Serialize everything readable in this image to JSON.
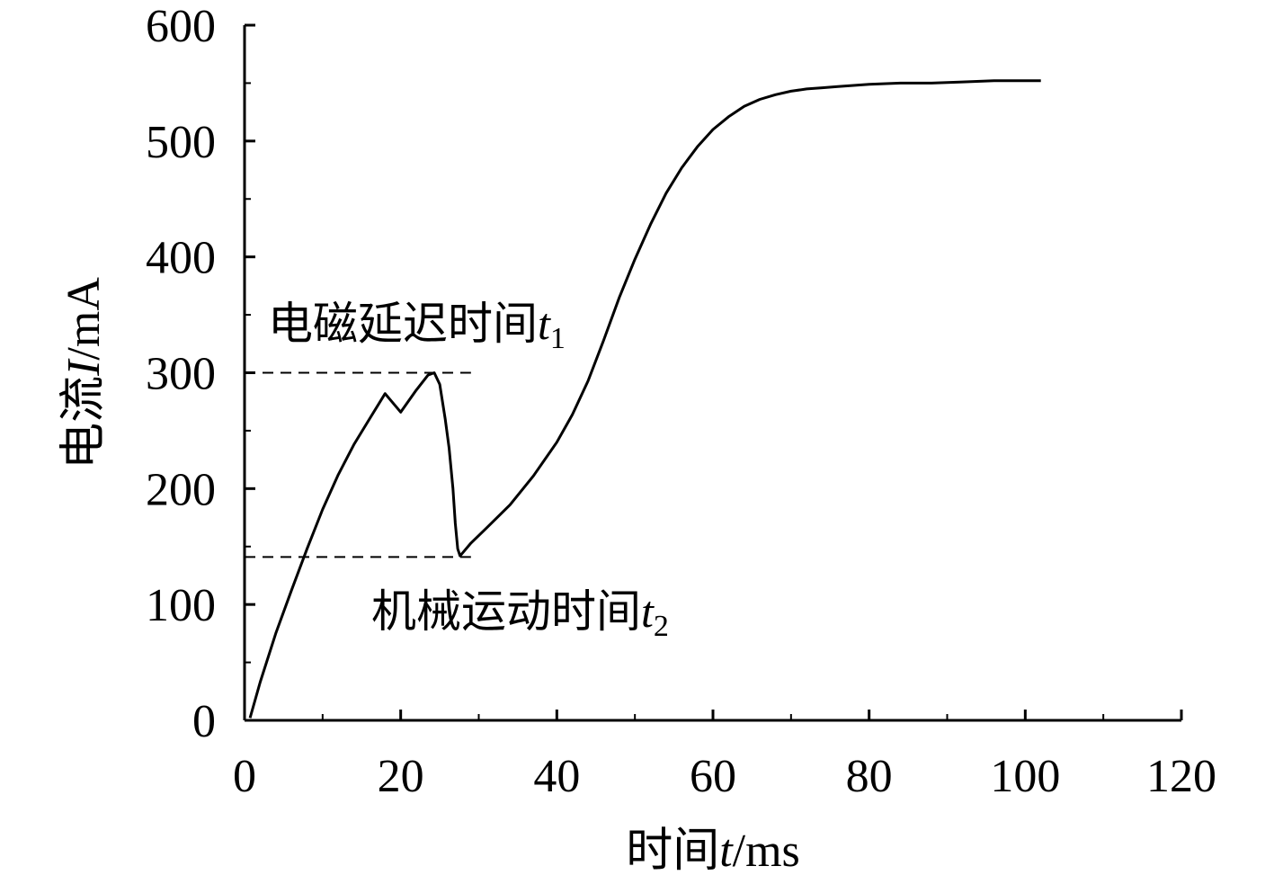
{
  "chart_data": {
    "type": "line",
    "title": "",
    "xlabel": {
      "prefix": "时间",
      "var": "t",
      "unit": "/ms"
    },
    "ylabel": {
      "prefix": "电流",
      "var": "I",
      "unit": "/mA"
    },
    "xlim": [
      0,
      120
    ],
    "ylim": [
      0,
      600
    ],
    "xticks": [
      0,
      20,
      40,
      60,
      80,
      100,
      120
    ],
    "yticks": [
      0,
      100,
      200,
      300,
      400,
      500,
      600
    ],
    "xtick_labels": [
      "0",
      "20",
      "40",
      "60",
      "80",
      "100",
      "120"
    ],
    "ytick_labels": [
      "0",
      "100",
      "200",
      "300",
      "400",
      "500",
      "600"
    ],
    "grid": false,
    "series": [
      {
        "x": [
          0.7,
          2,
          4,
          6,
          8,
          10,
          12,
          14,
          16,
          18,
          20,
          22,
          23.5,
          24.3,
          25,
          25.7,
          26.2,
          26.7,
          27,
          27.3,
          27.6,
          28,
          29,
          31,
          34,
          37,
          40,
          42,
          44,
          46,
          48,
          50,
          52,
          54,
          56,
          58,
          60,
          62,
          64,
          66,
          68,
          70,
          72,
          74,
          76,
          78,
          80,
          84,
          88,
          92,
          96,
          100,
          102
        ],
        "y": [
          2,
          33,
          75,
          112,
          148,
          182,
          212,
          238,
          260,
          282,
          266,
          285,
          298,
          300,
          290,
          260,
          235,
          200,
          170,
          148,
          142,
          145,
          153,
          166,
          186,
          211,
          240,
          264,
          293,
          328,
          365,
          398,
          428,
          455,
          477,
          495,
          510,
          521,
          530,
          536,
          540,
          543,
          545,
          546,
          547,
          548,
          549,
          550,
          550,
          551,
          552,
          552,
          552
        ]
      }
    ],
    "reference_lines": [
      {
        "y": 300,
        "x_from": 0,
        "x_to": 29
      },
      {
        "y": 141,
        "x_from": 0,
        "x_to": 29
      }
    ],
    "annotations": [
      {
        "text": "电磁延迟时间",
        "var": "t",
        "sub": "1"
      },
      {
        "text": "机械运动时间",
        "var": "t",
        "sub": "2"
      }
    ]
  }
}
